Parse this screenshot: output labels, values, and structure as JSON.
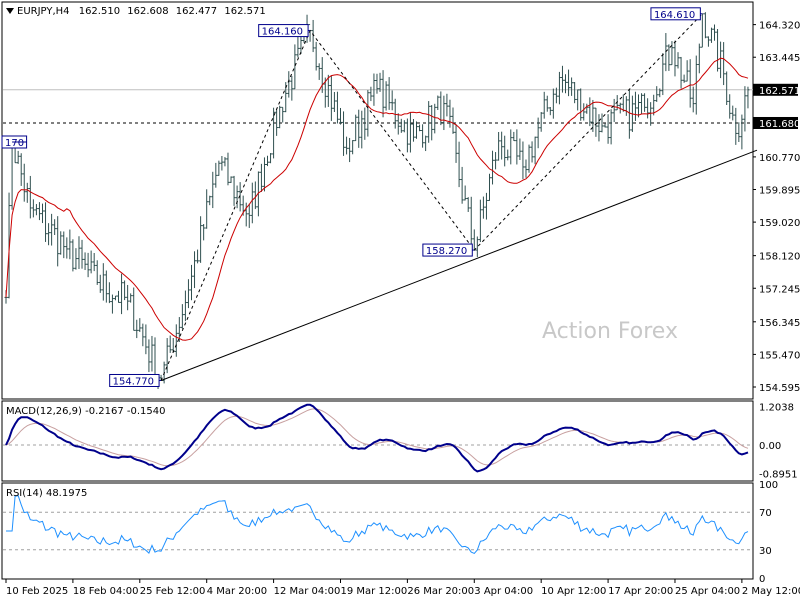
{
  "chart_data": [
    {
      "type": "ohlc",
      "header": {
        "symbol": "EURJPY,H4",
        "open": "162.510",
        "high": "162.608",
        "low": "162.477",
        "close": "162.571",
        "menu_glyph": "triangle-down-icon"
      },
      "ylim": [
        154.3,
        164.9
      ],
      "y_ticks": [
        "164.320",
        "163.445",
        "162.570",
        "161.680",
        "160.770",
        "159.895",
        "159.020",
        "158.120",
        "157.245",
        "156.345",
        "155.470",
        "154.595"
      ],
      "y_tick_values": [
        164.32,
        163.445,
        162.57,
        161.68,
        160.77,
        159.895,
        159.02,
        158.12,
        157.245,
        156.345,
        155.47,
        154.595
      ],
      "current_price": {
        "label": "162.571",
        "value": 162.571,
        "line": "solid",
        "color": "#bfbfbf"
      },
      "level_161680": {
        "label": "161.680",
        "value": 161.68,
        "line": "dashed",
        "color": "#000000"
      },
      "price_annotations": [
        {
          "label": "170",
          "value": 161.17,
          "bar": 2
        },
        {
          "label": "164.160",
          "value": 164.16,
          "bar": 100
        },
        {
          "label": "154.770",
          "value": 154.77,
          "bar": 51
        },
        {
          "label": "158.270",
          "value": 158.27,
          "bar": 154
        },
        {
          "label": "164.610",
          "value": 164.61,
          "bar": 229
        }
      ],
      "zigzag": [
        {
          "bar": 51,
          "value": 154.77
        },
        {
          "bar": 100,
          "value": 164.16
        },
        {
          "bar": 154,
          "value": 158.27
        },
        {
          "bar": 229,
          "value": 164.61
        }
      ],
      "trendline": [
        {
          "bar": 51,
          "value": 154.77
        },
        {
          "bar": 245,
          "value": 160.95
        }
      ],
      "ma_color": "#cc0000",
      "bar_color": "#2f4f4f",
      "bar_count": 245,
      "watermark": "Action Forex",
      "x_ticks": [
        "10 Feb 2025",
        "18 Feb 04:00",
        "25 Feb 12:00",
        "4 Mar 20:00",
        "12 Mar 04:00",
        "19 Mar 12:00",
        "26 Mar 20:00",
        "3 Apr 04:00",
        "10 Apr 12:00",
        "17 Apr 20:00",
        "25 Apr 04:00",
        "2 May 12:00"
      ],
      "x_tick_bars": [
        0,
        22,
        44,
        66,
        88,
        110,
        132,
        154,
        176,
        198,
        220,
        242
      ]
    },
    {
      "type": "macd",
      "label": "MACD(12,26,9) -0.2167 -0.1540",
      "ylim": [
        -1.1,
        1.35
      ],
      "y_ticks": [
        "1.2038",
        "0.00",
        "-0.8951"
      ],
      "y_tick_values": [
        1.2038,
        0.0,
        -0.8951
      ],
      "macd_color": "#00008b",
      "signal_color": "#c8a0a0"
    },
    {
      "type": "rsi",
      "label": "RSI(14) 48.1975",
      "ylim": [
        0,
        100
      ],
      "y_ticks": [
        "100",
        "70",
        "30",
        "0"
      ],
      "y_tick_values": [
        100,
        70,
        30,
        0
      ],
      "rsi_color": "#1e90ff"
    }
  ]
}
